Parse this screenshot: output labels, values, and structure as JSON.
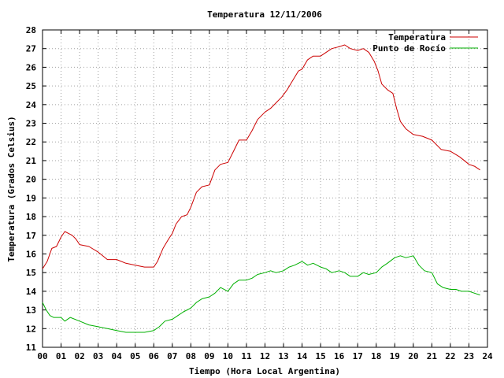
{
  "chart_data": {
    "type": "line",
    "title": "Temperatura 12/11/2006",
    "xlabel": "Tiempo (Hora Local Argentina)",
    "ylabel": "Temperatura (Grados Celsius)",
    "xlim": [
      0,
      24
    ],
    "ylim": [
      11,
      28
    ],
    "grid": true,
    "legend_position": "top-right",
    "xtick_labels": [
      "00",
      "01",
      "02",
      "03",
      "04",
      "05",
      "06",
      "07",
      "08",
      "09",
      "10",
      "11",
      "12",
      "13",
      "14",
      "15",
      "16",
      "17",
      "18",
      "19",
      "20",
      "21",
      "22",
      "23",
      "24"
    ],
    "ytick_labels": [
      "11",
      "12",
      "13",
      "14",
      "15",
      "16",
      "17",
      "18",
      "19",
      "20",
      "21",
      "22",
      "23",
      "24",
      "25",
      "26",
      "27",
      "28"
    ],
    "series": [
      {
        "name": "Temperatura",
        "color": "#cc0000",
        "x": [
          0.0,
          0.25,
          0.5,
          0.75,
          1.0,
          1.2,
          1.4,
          1.6,
          1.8,
          2.0,
          2.5,
          3.0,
          3.5,
          4.0,
          4.5,
          5.0,
          5.5,
          6.0,
          6.2,
          6.5,
          6.8,
          7.0,
          7.2,
          7.5,
          7.8,
          8.0,
          8.3,
          8.6,
          9.0,
          9.3,
          9.6,
          10.0,
          10.3,
          10.6,
          11.0,
          11.3,
          11.6,
          12.0,
          12.3,
          12.6,
          12.9,
          13.2,
          13.5,
          13.8,
          14.0,
          14.3,
          14.6,
          15.0,
          15.3,
          15.6,
          16.0,
          16.3,
          16.6,
          17.0,
          17.3,
          17.6,
          17.9,
          18.1,
          18.3,
          18.6,
          18.9,
          19.1,
          19.3,
          19.6,
          20.0,
          20.5,
          21.0,
          21.5,
          22.0,
          22.5,
          23.0,
          23.3,
          23.6
        ],
        "y": [
          15.2,
          15.6,
          16.3,
          16.4,
          16.9,
          17.2,
          17.1,
          17.0,
          16.8,
          16.5,
          16.4,
          16.1,
          15.7,
          15.7,
          15.5,
          15.4,
          15.3,
          15.3,
          15.6,
          16.3,
          16.8,
          17.1,
          17.6,
          18.0,
          18.1,
          18.5,
          19.3,
          19.6,
          19.7,
          20.5,
          20.8,
          20.9,
          21.5,
          22.1,
          22.1,
          22.6,
          23.2,
          23.6,
          23.8,
          24.1,
          24.4,
          24.8,
          25.3,
          25.8,
          25.9,
          26.4,
          26.6,
          26.6,
          26.8,
          27.0,
          27.1,
          27.2,
          27.0,
          26.9,
          27.0,
          26.8,
          26.3,
          25.8,
          25.1,
          24.8,
          24.6,
          23.8,
          23.1,
          22.7,
          22.4,
          22.3,
          22.1,
          21.6,
          21.5,
          21.2,
          20.8,
          20.7,
          20.5
        ]
      },
      {
        "name": "Punto de Rocío",
        "color": "#00b000",
        "x": [
          0.0,
          0.2,
          0.4,
          0.6,
          0.8,
          1.0,
          1.2,
          1.5,
          2.0,
          2.5,
          3.0,
          3.5,
          4.0,
          4.5,
          5.0,
          5.5,
          6.0,
          6.3,
          6.6,
          7.0,
          7.3,
          7.6,
          8.0,
          8.3,
          8.6,
          9.0,
          9.3,
          9.6,
          10.0,
          10.3,
          10.6,
          11.0,
          11.3,
          11.6,
          12.0,
          12.3,
          12.6,
          13.0,
          13.3,
          13.6,
          14.0,
          14.3,
          14.6,
          15.0,
          15.3,
          15.6,
          16.0,
          16.3,
          16.6,
          17.0,
          17.3,
          17.6,
          18.0,
          18.3,
          18.6,
          19.0,
          19.3,
          19.6,
          20.0,
          20.3,
          20.6,
          21.0,
          21.3,
          21.6,
          22.0,
          22.3,
          22.6,
          23.0,
          23.3,
          23.6
        ],
        "y": [
          13.4,
          13.0,
          12.7,
          12.6,
          12.6,
          12.6,
          12.4,
          12.6,
          12.4,
          12.2,
          12.1,
          12.0,
          11.9,
          11.8,
          11.8,
          11.8,
          11.9,
          12.1,
          12.4,
          12.5,
          12.7,
          12.9,
          13.1,
          13.4,
          13.6,
          13.7,
          13.9,
          14.2,
          14.0,
          14.4,
          14.6,
          14.6,
          14.7,
          14.9,
          15.0,
          15.1,
          15.0,
          15.1,
          15.3,
          15.4,
          15.6,
          15.4,
          15.5,
          15.3,
          15.2,
          15.0,
          15.1,
          15.0,
          14.8,
          14.8,
          15.0,
          14.9,
          15.0,
          15.3,
          15.5,
          15.8,
          15.9,
          15.8,
          15.9,
          15.4,
          15.1,
          15.0,
          14.4,
          14.2,
          14.1,
          14.1,
          14.0,
          14.0,
          13.9,
          13.8
        ]
      }
    ]
  }
}
